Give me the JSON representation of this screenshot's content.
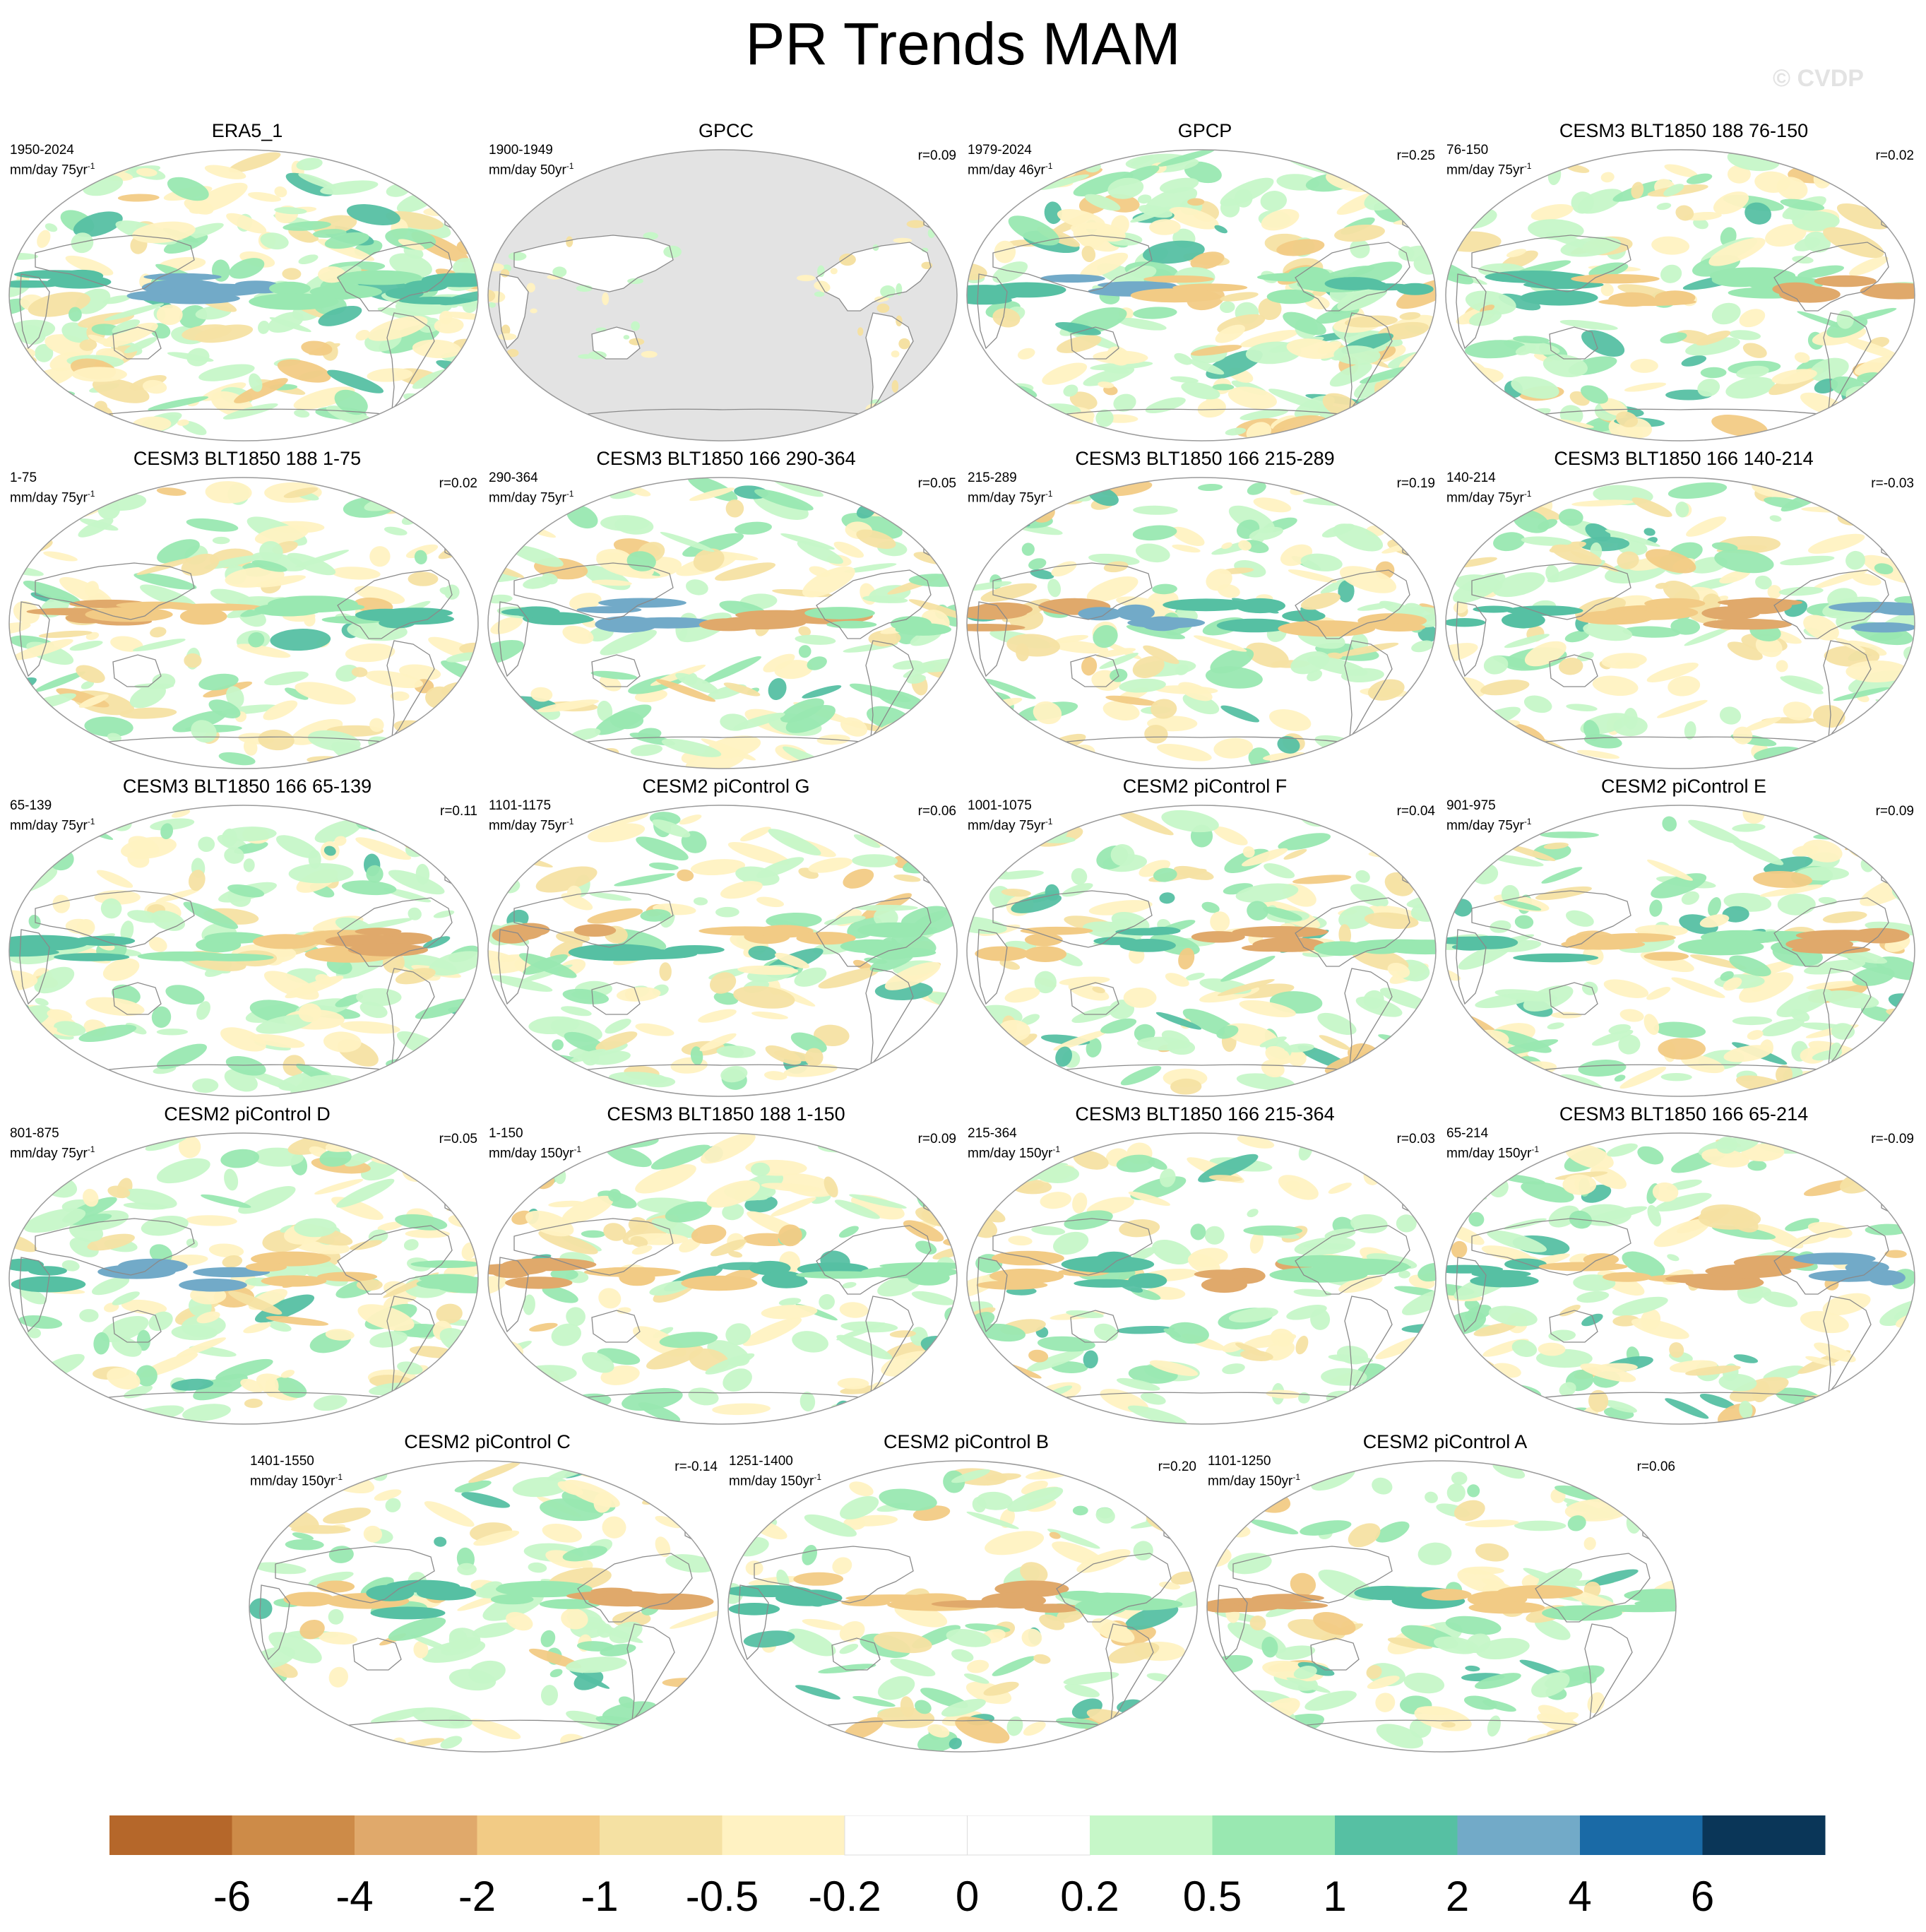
{
  "title": "PR Trends MAM",
  "watermark": "© CVDP",
  "colors": {
    "land_mask": "#e3e3e3",
    "coast": "#8a8a8a",
    "outline": "#9a9a9a"
  },
  "chart_data": {
    "type": "heatmap",
    "variable": "PR",
    "season": "MAM",
    "colorbar": {
      "tick_labels": [
        "-6",
        "-4",
        "-2",
        "-1",
        "-0.5",
        "-0.2",
        "0",
        "0.2",
        "0.5",
        "1",
        "2",
        "4",
        "6"
      ],
      "colors": [
        "#b5672a",
        "#cd8b48",
        "#e0a96b",
        "#f2cb85",
        "#f5e1a3",
        "#fff2c2",
        "#ffffff",
        "#ffffff",
        "#c6f7c8",
        "#99e8b1",
        "#56c0a3",
        "#72aac8",
        "#1a6aa6",
        "#0a3658"
      ]
    },
    "panels": [
      {
        "title": "ERA5_1",
        "range": "1950-2024",
        "units": "mm/day 75yr",
        "r": "",
        "pattern": "era5"
      },
      {
        "title": "GPCC",
        "range": "1900-1949",
        "units": "mm/day 50yr",
        "r": "r=0.09",
        "pattern": "gpcc"
      },
      {
        "title": "GPCP",
        "range": "1979-2024",
        "units": "mm/day 46yr",
        "r": "r=0.25",
        "pattern": "gpcp"
      },
      {
        "title": "CESM3 BLT1850 188 76-150",
        "range": "76-150",
        "units": "mm/day 75yr",
        "r": "r=0.02",
        "pattern": "mixedA"
      },
      {
        "title": "CESM3 BLT1850 188 1-75",
        "range": "1-75",
        "units": "mm/day 75yr",
        "r": "r=0.02",
        "pattern": "mixedB"
      },
      {
        "title": "CESM3 BLT1850 166 290-364",
        "range": "290-364",
        "units": "mm/day 75yr",
        "r": "r=0.05",
        "pattern": "mixedC"
      },
      {
        "title": "CESM3 BLT1850 166 215-289",
        "range": "215-289",
        "units": "mm/day 75yr",
        "r": "r=0.19",
        "pattern": "mixedD"
      },
      {
        "title": "CESM3 BLT1850 166 140-214",
        "range": "140-214",
        "units": "mm/day 75yr",
        "r": "r=-0.03",
        "pattern": "mixedE"
      },
      {
        "title": "CESM3 BLT1850 166 65-139",
        "range": "65-139",
        "units": "mm/day 75yr",
        "r": "r=0.11",
        "pattern": "mixedF"
      },
      {
        "title": "CESM2 piControl G",
        "range": "1101-1175",
        "units": "mm/day 75yr",
        "r": "r=0.06",
        "pattern": "mixedG"
      },
      {
        "title": "CESM2 piControl F",
        "range": "1001-1075",
        "units": "mm/day 75yr",
        "r": "r=0.04",
        "pattern": "mixedH"
      },
      {
        "title": "CESM2 piControl E",
        "range": "901-975",
        "units": "mm/day 75yr",
        "r": "r=0.09",
        "pattern": "mixedI"
      },
      {
        "title": "CESM2 piControl D",
        "range": "801-875",
        "units": "mm/day 75yr",
        "r": "r=0.05",
        "pattern": "mixedJ"
      },
      {
        "title": "CESM3 BLT1850 188 1-150",
        "range": "1-150",
        "units": "mm/day 150yr",
        "r": "r=0.09",
        "pattern": "mixedK"
      },
      {
        "title": "CESM3 BLT1850 166 215-364",
        "range": "215-364",
        "units": "mm/day 150yr",
        "r": "r=0.03",
        "pattern": "mixedL"
      },
      {
        "title": "CESM3 BLT1850 166 65-214",
        "range": "65-214",
        "units": "mm/day 150yr",
        "r": "r=-0.09",
        "pattern": "mixedM"
      },
      {
        "title": "CESM2 piControl C",
        "range": "1401-1550",
        "units": "mm/day 150yr",
        "r": "r=-0.14",
        "pattern": "mixedN"
      },
      {
        "title": "CESM2 piControl B",
        "range": "1251-1400",
        "units": "mm/day 150yr",
        "r": "r=0.20",
        "pattern": "mixedO"
      },
      {
        "title": "CESM2 piControl A",
        "range": "1101-1250",
        "units": "mm/day 150yr",
        "r": "r=0.06",
        "pattern": "mixedP"
      }
    ]
  }
}
